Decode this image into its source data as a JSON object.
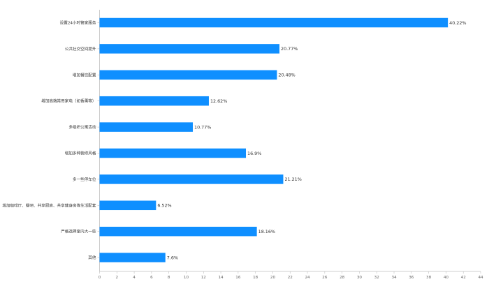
{
  "chart_data": {
    "type": "bar",
    "orientation": "horizontal",
    "categories": [
      "设置24小时管家服务",
      "公共社交空间提升",
      "增加餐饮配置",
      "增加高端常用家电（如香薰等）",
      "多组织公寓活动",
      "增加多种装修风格",
      "多一些停车位",
      "增加咖啡厅、餐吧、共享厨房、共享健身房等生活配套",
      "严格选择室内大一些",
      "其他"
    ],
    "values": [
      40.22,
      20.77,
      20.48,
      12.62,
      10.77,
      16.9,
      21.21,
      6.52,
      18.16,
      7.6
    ],
    "value_labels": [
      "40.22%",
      "20.77%",
      "20.48%",
      "12.62%",
      "10.77%",
      "16.9%",
      "21.21%",
      "6.52%",
      "18.16%",
      "7.6%"
    ],
    "xlim": [
      0,
      44
    ],
    "x_ticks": [
      "0",
      "2",
      "4",
      "6",
      "8",
      "10",
      "12",
      "14",
      "16",
      "18",
      "20",
      "22",
      "24",
      "26",
      "28",
      "30",
      "32",
      "34",
      "36",
      "38",
      "40",
      "42",
      "44"
    ],
    "bar_color": "#0f8fff",
    "grid": false,
    "title": "",
    "xlabel": "",
    "ylabel": ""
  }
}
